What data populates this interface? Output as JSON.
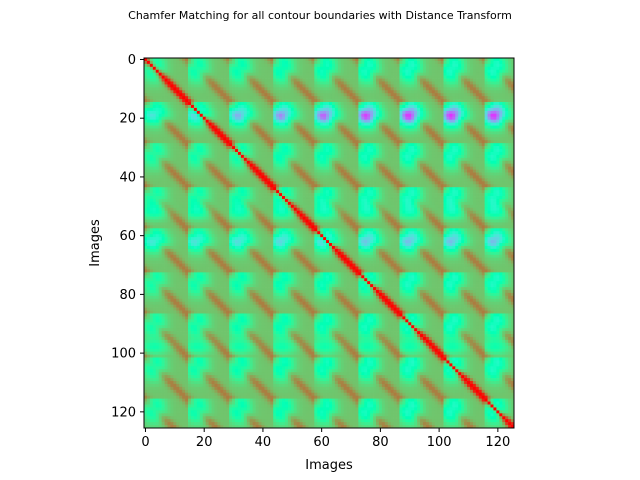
{
  "chart_data": {
    "type": "heatmap",
    "title": "Chamfer Matching for all contour boundaries with Distance Transform",
    "xlabel": "Images",
    "ylabel": "Images",
    "n": 126,
    "xlim": [
      -0.5,
      125.5
    ],
    "ylim": [
      125.5,
      -0.5
    ],
    "x_ticks": [
      0,
      20,
      40,
      60,
      80,
      100,
      120
    ],
    "y_ticks": [
      0,
      20,
      40,
      60,
      80,
      100,
      120
    ],
    "colormap": "rainbow",
    "colors": {
      "diagonal": "#ff0000",
      "high_similarity": "#ff3b1f",
      "medium": "#ffa76e",
      "low": "#7fffa0",
      "lowest": "#7f00ff"
    },
    "description_of_pattern": {
      "diagonal_period": 14.5,
      "low_value_band_rows": [
        19,
        52,
        98,
        62
      ],
      "minimum_value_location": [
        90,
        20
      ]
    }
  }
}
